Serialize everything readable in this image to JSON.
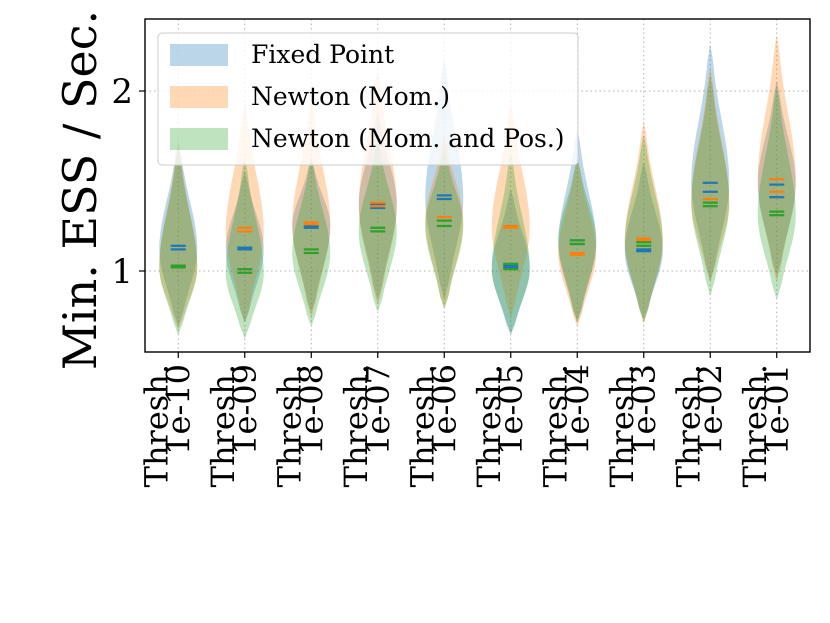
{
  "chart_data": {
    "type": "violin",
    "ylabel": "Min. ESS / Sec.",
    "xlabel": "",
    "ylim": [
      0.55,
      2.4
    ],
    "yticks": [
      1,
      2
    ],
    "ytick_labels": [
      "1",
      "2"
    ],
    "grid": true,
    "legend_position": "top-left",
    "categories": [
      "Thresh. 1e-10",
      "Thresh. 1e-09",
      "Thresh. 1e-08",
      "Thresh. 1e-07",
      "Thresh. 1e-06",
      "Thresh. 1e-05",
      "Thresh. 1e-04",
      "Thresh. 1e-03",
      "Thresh. 1e-02",
      "Thresh. 1e-01"
    ],
    "series": [
      {
        "name": "Fixed Point",
        "color": "#1f77b4",
        "means": [
          1.14,
          1.13,
          1.24,
          1.35,
          1.42,
          1.03,
          1.17,
          1.12,
          1.44,
          1.41
        ],
        "medians": [
          1.12,
          1.12,
          1.25,
          1.37,
          1.4,
          1.02,
          1.15,
          1.11,
          1.49,
          1.48
        ],
        "mins": [
          0.7,
          0.72,
          0.78,
          0.85,
          0.85,
          0.65,
          0.72,
          0.74,
          0.95,
          0.98
        ],
        "maxs": [
          1.72,
          1.55,
          1.62,
          1.88,
          2.17,
          1.45,
          1.78,
          1.6,
          2.25,
          2.05
        ]
      },
      {
        "name": "Newton (Mom.)",
        "color": "#ff7f0e",
        "means": [
          1.03,
          1.24,
          1.27,
          1.38,
          1.3,
          1.25,
          1.09,
          1.18,
          1.4,
          1.44
        ],
        "medians": [
          1.02,
          1.22,
          1.26,
          1.36,
          1.28,
          1.24,
          1.1,
          1.17,
          1.38,
          1.51
        ],
        "mins": [
          0.68,
          0.72,
          0.75,
          0.82,
          0.8,
          0.75,
          0.7,
          0.72,
          0.95,
          0.95
        ],
        "maxs": [
          1.7,
          1.92,
          1.95,
          2.1,
          1.75,
          1.92,
          1.62,
          1.82,
          2.12,
          2.3
        ]
      },
      {
        "name": "Newton (Mom. and Pos.)",
        "color": "#2ca02c",
        "means": [
          1.03,
          1.01,
          1.12,
          1.24,
          1.28,
          1.04,
          1.15,
          1.14,
          1.36,
          1.33
        ],
        "medians": [
          1.02,
          0.99,
          1.1,
          1.22,
          1.25,
          1.01,
          1.17,
          1.16,
          1.38,
          1.31
        ],
        "mins": [
          0.65,
          0.63,
          0.7,
          0.78,
          0.8,
          0.66,
          0.73,
          0.72,
          0.87,
          0.85
        ],
        "maxs": [
          1.68,
          1.62,
          1.62,
          1.72,
          1.68,
          1.65,
          1.62,
          1.75,
          2.08,
          2.02
        ]
      }
    ]
  }
}
